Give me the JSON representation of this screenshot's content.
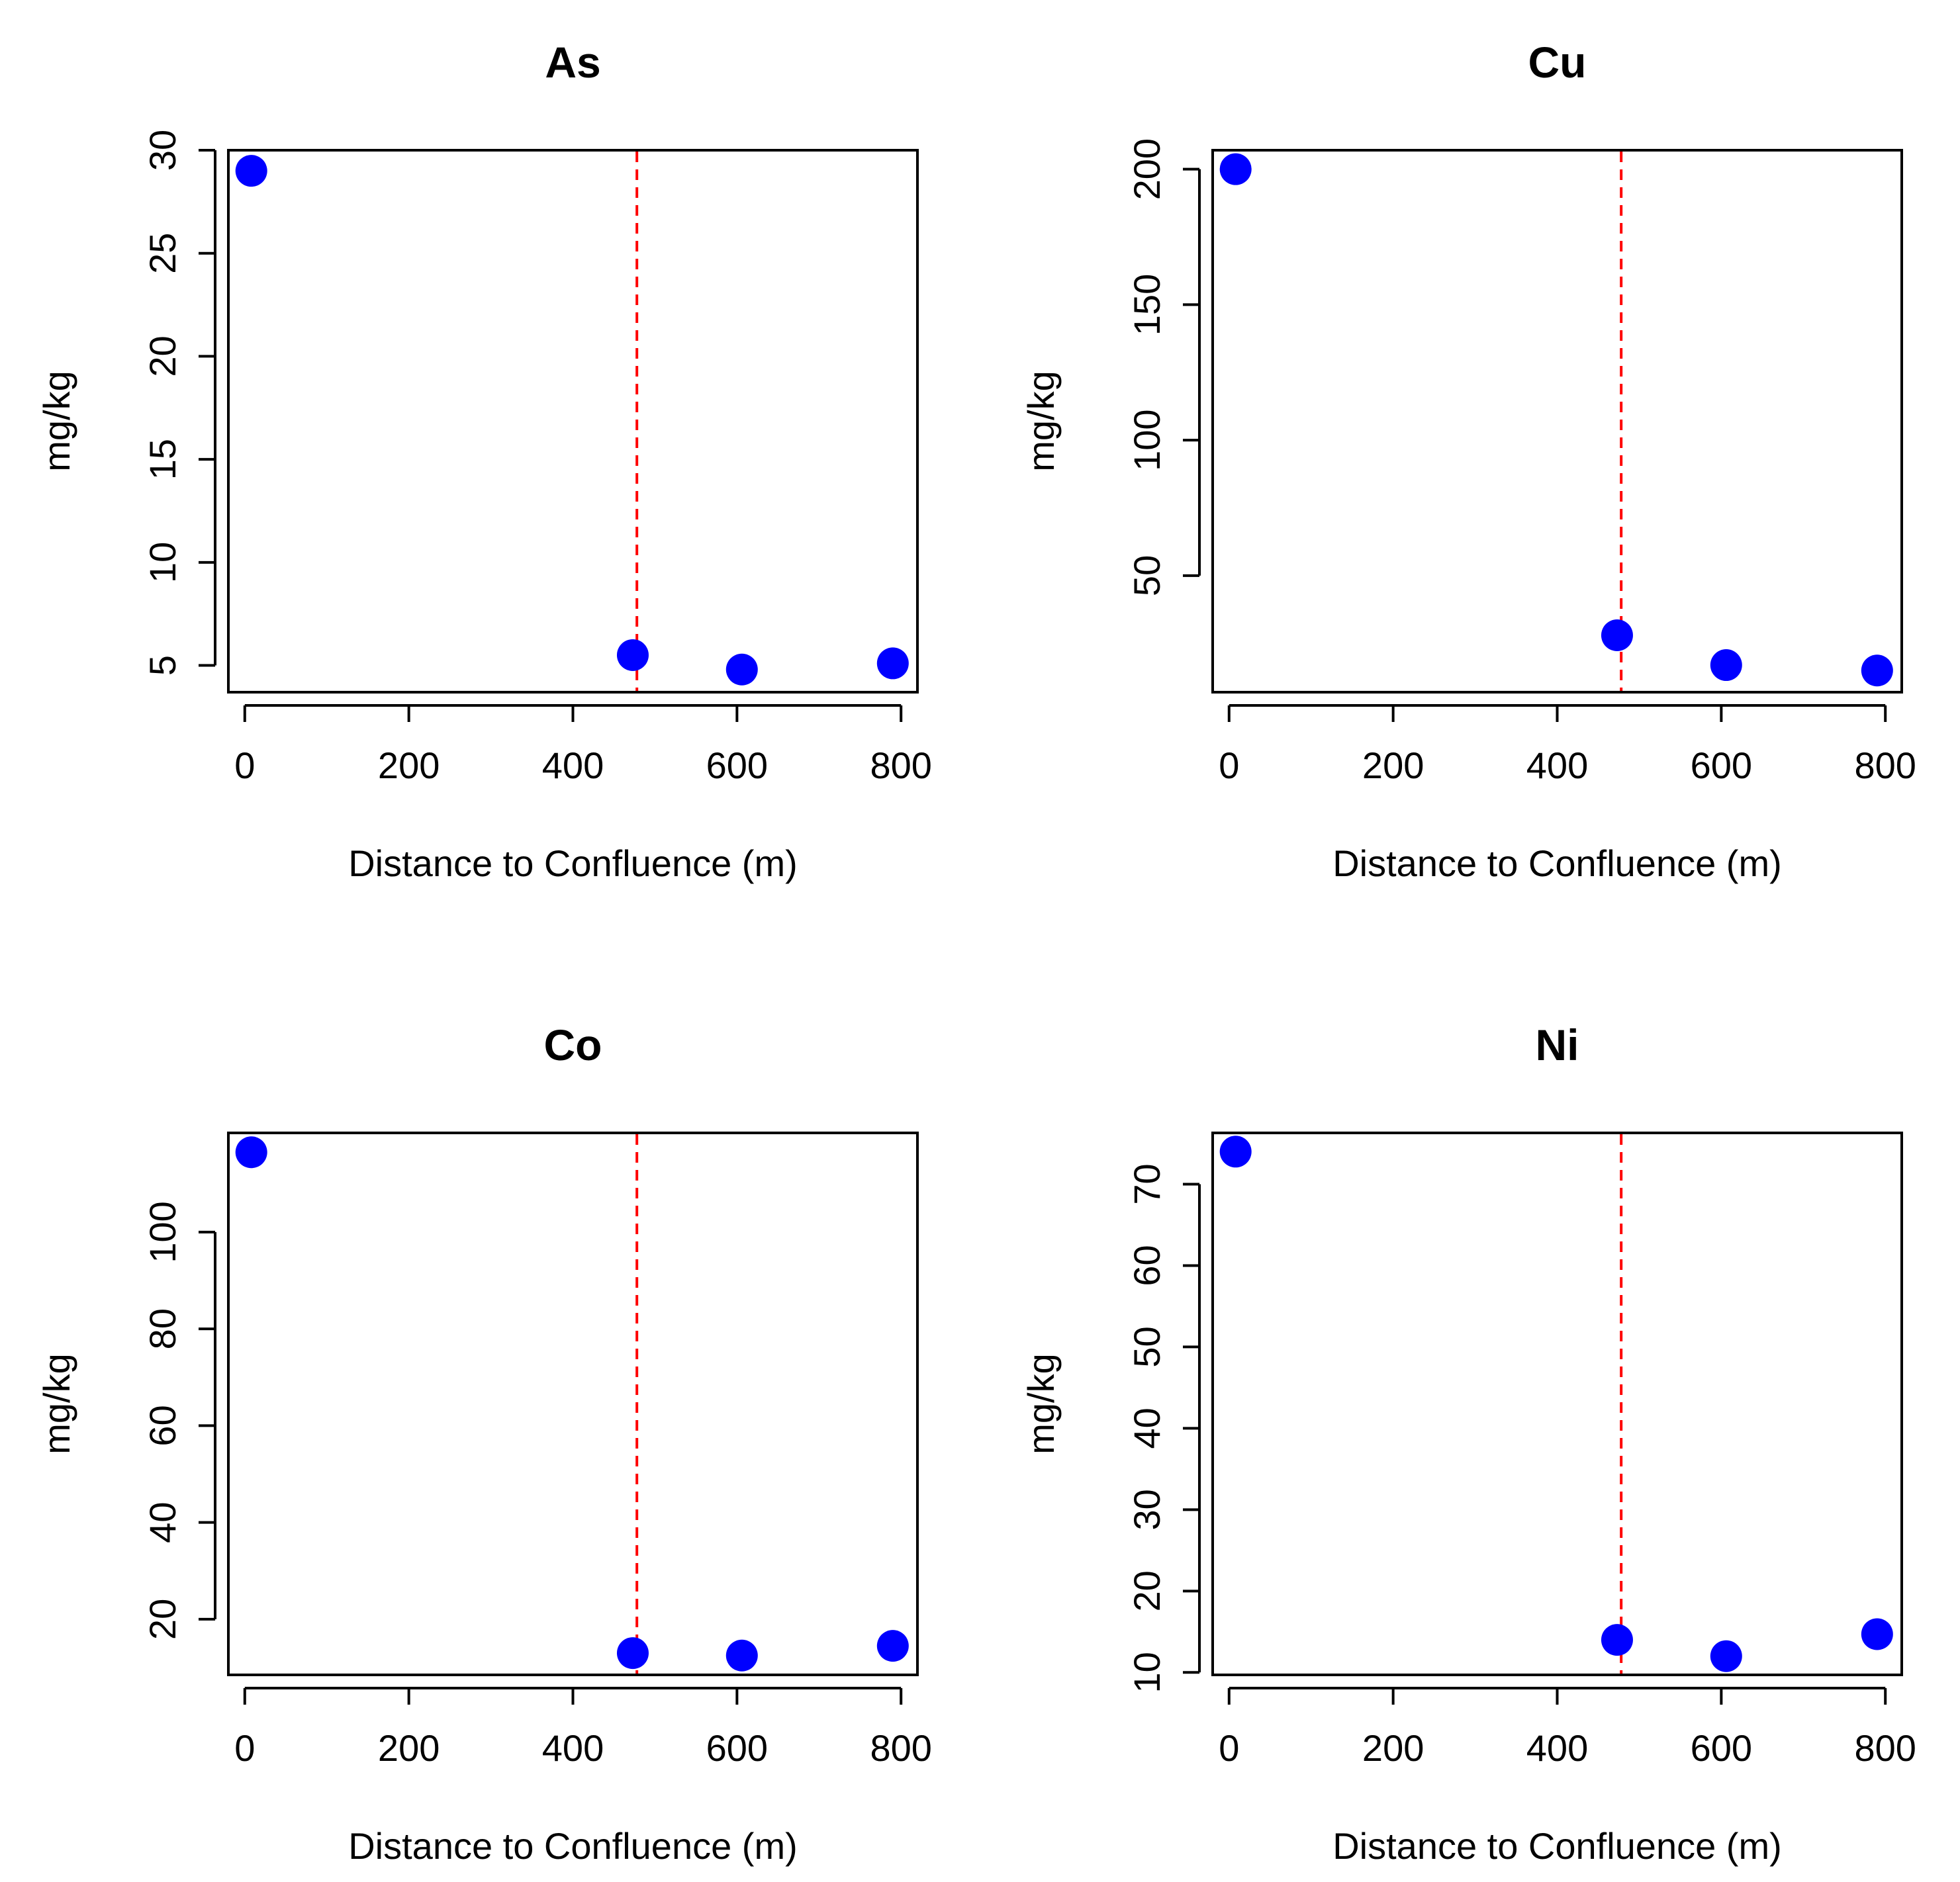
{
  "colors": {
    "point": "#0000FF",
    "reference_line": "#FF0000",
    "axis": "#000000"
  },
  "chart_data": [
    {
      "type": "scatter",
      "title": "As",
      "xlabel": "Distance to Confluence (m)",
      "ylabel": "mg/kg",
      "xlim": [
        -20,
        820
      ],
      "ylim": [
        3.7,
        30.0
      ],
      "xticks": [
        0,
        200,
        400,
        600,
        800
      ],
      "yticks": [
        5,
        10,
        15,
        20,
        25,
        30
      ],
      "x": [
        8,
        473,
        606,
        790
      ],
      "y": [
        29.0,
        5.5,
        4.8,
        5.1
      ],
      "reference_x": 478
    },
    {
      "type": "scatter",
      "title": "Cu",
      "xlabel": "Distance to Confluence (m)",
      "ylabel": "mg/kg",
      "xlim": [
        -20,
        820
      ],
      "ylim": [
        7,
        207
      ],
      "xticks": [
        0,
        200,
        400,
        600,
        800
      ],
      "yticks": [
        50,
        100,
        150,
        200
      ],
      "x": [
        8,
        473,
        606,
        790
      ],
      "y": [
        200,
        28,
        17,
        15
      ],
      "reference_x": 478
    },
    {
      "type": "scatter",
      "title": "Co",
      "xlabel": "Distance to Confluence (m)",
      "ylabel": "mg/kg",
      "xlim": [
        -20,
        820
      ],
      "ylim": [
        8.5,
        120.5
      ],
      "xticks": [
        0,
        200,
        400,
        600,
        800
      ],
      "yticks": [
        20,
        40,
        60,
        80,
        100
      ],
      "x": [
        8,
        473,
        606,
        790
      ],
      "y": [
        116.5,
        13,
        12.5,
        14.5
      ],
      "reference_x": 478
    },
    {
      "type": "scatter",
      "title": "Ni",
      "xlabel": "Distance to Confluence (m)",
      "ylabel": "mg/kg",
      "xlim": [
        -20,
        820
      ],
      "ylim": [
        9.7,
        76.3
      ],
      "xticks": [
        0,
        200,
        400,
        600,
        800
      ],
      "yticks": [
        10,
        20,
        30,
        40,
        50,
        60,
        70
      ],
      "x": [
        8,
        473,
        606,
        790
      ],
      "y": [
        74,
        14,
        12,
        14.7
      ],
      "reference_x": 478
    }
  ]
}
